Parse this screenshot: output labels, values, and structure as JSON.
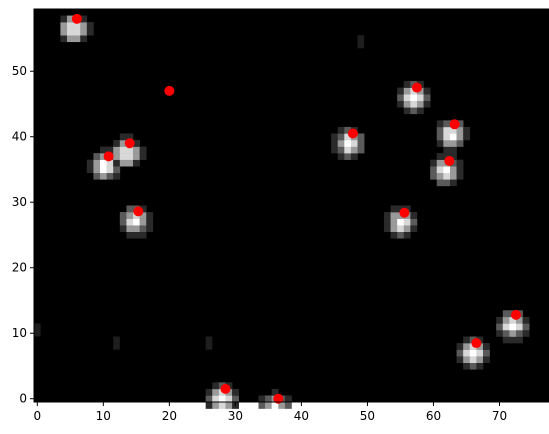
{
  "chart_data": {
    "type": "scatter",
    "title": "",
    "xlabel": "",
    "ylabel": "",
    "image": {
      "rows": 60,
      "cols": 78,
      "background": "#000000",
      "blob_colors": [
        "#2a2a2a",
        "#5a5a5a",
        "#9a9a9a",
        "#d8d8d8",
        "#ffffff"
      ]
    },
    "xlim": [
      -0.5,
      77.5
    ],
    "ylim": [
      59.5,
      -0.5
    ],
    "xticks": [
      0,
      10,
      20,
      30,
      40,
      50,
      60,
      70
    ],
    "yticks": [
      0,
      10,
      20,
      30,
      40,
      50
    ],
    "point_color": "#ff0000",
    "points": [
      {
        "x": 28.5,
        "y": 1.5,
        "blob": true
      },
      {
        "x": 36.5,
        "y": 0.0,
        "blob": true
      },
      {
        "x": 66.5,
        "y": 8.5,
        "blob": true
      },
      {
        "x": 72.5,
        "y": 12.8,
        "blob": true
      },
      {
        "x": 15.3,
        "y": 28.6,
        "blob": true
      },
      {
        "x": 55.6,
        "y": 28.4,
        "blob": true
      },
      {
        "x": 62.4,
        "y": 36.3,
        "blob": true
      },
      {
        "x": 10.8,
        "y": 37.0,
        "blob": true
      },
      {
        "x": 14.0,
        "y": 39.0,
        "blob": true
      },
      {
        "x": 47.8,
        "y": 40.5,
        "blob": true
      },
      {
        "x": 63.2,
        "y": 41.9,
        "blob": true
      },
      {
        "x": 20.0,
        "y": 47.0,
        "blob": false
      },
      {
        "x": 57.5,
        "y": 47.5,
        "blob": true
      },
      {
        "x": 6.0,
        "y": 58.0,
        "blob": true
      }
    ],
    "faint_spots": [
      {
        "x": 26.5,
        "y": 10.5
      },
      {
        "x": 0.0,
        "y": 12.0
      },
      {
        "x": 12.0,
        "y": 10.0
      },
      {
        "x": 49.0,
        "y": 56.0
      }
    ]
  }
}
